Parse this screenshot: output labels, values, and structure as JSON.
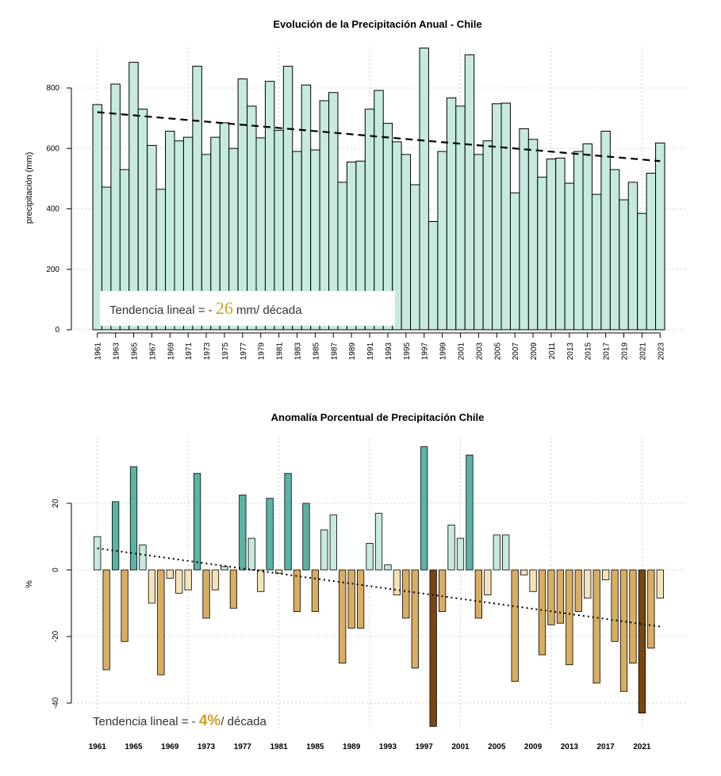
{
  "chart_data": [
    {
      "type": "bar",
      "title": "Evolución de la Precipitación Anual - Chile",
      "ylabel": "precipitación (mm)",
      "ylim": [
        0,
        960
      ],
      "yticks": [
        0,
        200,
        400,
        600,
        800
      ],
      "x_tick_labels": [
        "1961",
        "1963",
        "1965",
        "1967",
        "1969",
        "1971",
        "1973",
        "1975",
        "1977",
        "1979",
        "1981",
        "1983",
        "1985",
        "1987",
        "1989",
        "1991",
        "1993",
        "1995",
        "1997",
        "1999",
        "2001",
        "2003",
        "2005",
        "2007",
        "2009",
        "2011",
        "2013",
        "2015",
        "2017",
        "2019",
        "2021",
        "2023"
      ],
      "years": [
        1961,
        1962,
        1963,
        1964,
        1965,
        1966,
        1967,
        1968,
        1969,
        1970,
        1971,
        1972,
        1973,
        1974,
        1975,
        1976,
        1977,
        1978,
        1979,
        1980,
        1981,
        1982,
        1983,
        1984,
        1985,
        1986,
        1987,
        1988,
        1989,
        1990,
        1991,
        1992,
        1993,
        1994,
        1995,
        1996,
        1997,
        1998,
        1999,
        2000,
        2001,
        2002,
        2003,
        2004,
        2005,
        2006,
        2007,
        2008,
        2009,
        2010,
        2011,
        2012,
        2013,
        2014,
        2015,
        2016,
        2017,
        2018,
        2019,
        2020,
        2021,
        2022,
        2023
      ],
      "values": [
        745,
        472,
        813,
        530,
        885,
        730,
        610,
        465,
        657,
        625,
        637,
        872,
        580,
        637,
        685,
        600,
        830,
        740,
        635,
        822,
        660,
        872,
        590,
        810,
        595,
        758,
        785,
        488,
        555,
        558,
        730,
        792,
        683,
        622,
        580,
        480,
        932,
        358,
        590,
        767,
        740,
        910,
        580,
        625,
        748,
        750,
        453,
        665,
        630,
        505,
        565,
        568,
        485,
        590,
        615,
        448,
        657,
        530,
        430,
        488,
        385,
        518,
        618
      ],
      "bar_color": "#c6e9e0",
      "trend_line": {
        "start_year": 1961,
        "start_value": 720,
        "end_year": 2023,
        "end_value": 558,
        "style": "dashed"
      },
      "annotation": {
        "prefix": "Tendencia lineal = - ",
        "number": "26",
        "suffix": " mm/ década"
      }
    },
    {
      "type": "bar",
      "title": "Anomalía Porcentual de Precipitación Chile",
      "ylabel": "%",
      "ylim": [
        -48,
        40
      ],
      "yticks": [
        20,
        0,
        -20,
        -40
      ],
      "x_tick_labels": [
        "1961",
        "1965",
        "1969",
        "1973",
        "1977",
        "1981",
        "1985",
        "1989",
        "1993",
        "1997",
        "2001",
        "2005",
        "2009",
        "2013",
        "2017",
        "2021"
      ],
      "years": [
        1961,
        1962,
        1963,
        1964,
        1965,
        1966,
        1967,
        1968,
        1969,
        1970,
        1971,
        1972,
        1973,
        1974,
        1975,
        1976,
        1977,
        1978,
        1979,
        1980,
        1981,
        1982,
        1983,
        1984,
        1985,
        1986,
        1987,
        1988,
        1989,
        1990,
        1991,
        1992,
        1993,
        1994,
        1995,
        1996,
        1997,
        1998,
        1999,
        2000,
        2001,
        2002,
        2003,
        2004,
        2005,
        2006,
        2007,
        2008,
        2009,
        2010,
        2011,
        2012,
        2013,
        2014,
        2015,
        2016,
        2017,
        2018,
        2019,
        2020,
        2021,
        2022,
        2023
      ],
      "values": [
        10,
        -30,
        20.5,
        -21.5,
        31,
        7.5,
        -10,
        -31.5,
        -2.5,
        -7,
        -6,
        29,
        -14.5,
        -6,
        1,
        -11.5,
        22.5,
        9.5,
        -6.5,
        21.5,
        -1,
        29,
        -12.5,
        20,
        -12.5,
        12,
        16.5,
        -28,
        -17.5,
        -17.5,
        8,
        17,
        1.5,
        -7.5,
        -14.5,
        -29.5,
        37,
        -47,
        -12.5,
        13.5,
        9.5,
        34.5,
        -14.5,
        -7.5,
        10.5,
        10.5,
        -33.5,
        -1.5,
        -6.5,
        -25.5,
        -16.5,
        -16,
        -28.5,
        -12.5,
        -8.5,
        -34,
        -3,
        -21.5,
        -36.5,
        -28,
        -43,
        -23.5,
        -8.5
      ],
      "colors": {
        "strong_positive": "#5bb3a6",
        "weak_positive": "#c6e9e0",
        "weak_negative": "#f5e2b8",
        "negative": "#d9ad62",
        "extreme_negative": "#7a4610"
      },
      "trend_line": {
        "start_year": 1961,
        "start_value": 6.5,
        "end_year": 2023,
        "end_value": -17,
        "style": "dotted"
      },
      "annotation": {
        "prefix": "Tendencia lineal = - ",
        "number": "4%",
        "suffix": "/ década"
      }
    }
  ]
}
